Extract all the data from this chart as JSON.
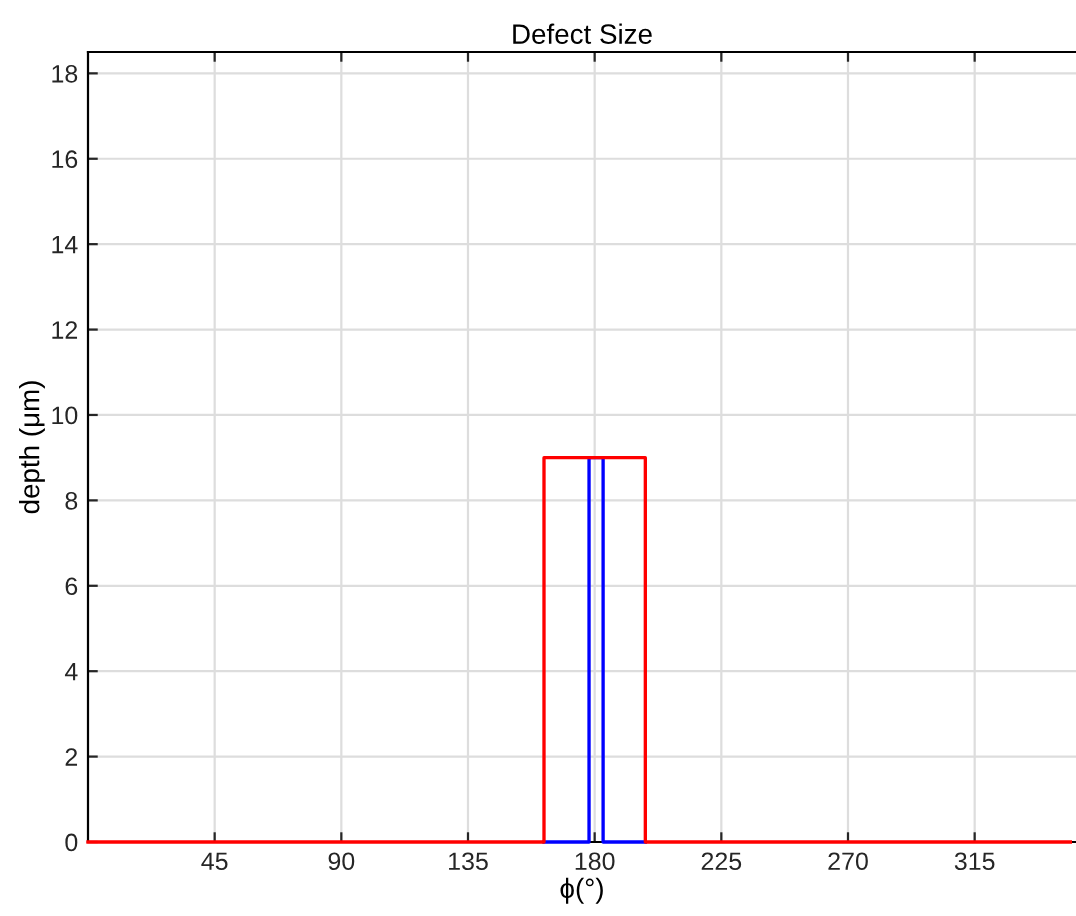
{
  "chart_data": {
    "type": "line",
    "title": "Defect Size",
    "xlabel": "ϕ(°)",
    "ylabel": "depth (μm)",
    "series": [
      {
        "color": "#0000ff",
        "x": [
          162,
          178,
          178,
          183,
          183,
          198
        ],
        "values": [
          0,
          0,
          9,
          9,
          0,
          0
        ]
      },
      {
        "color": "#ff0000",
        "x": [
          0,
          162,
          162,
          198,
          198,
          349
        ],
        "values": [
          0,
          0,
          9,
          9,
          0,
          0
        ]
      }
    ],
    "xlim": [
      0,
      351
    ],
    "xticks": [
      45,
      90,
      135,
      180,
      225,
      270,
      315
    ],
    "ylim": [
      0,
      18.5
    ],
    "yticks": [
      0,
      2,
      4,
      6,
      8,
      10,
      12,
      14,
      16,
      18
    ],
    "grid": true,
    "marker": "none",
    "line_style": "solid"
  }
}
